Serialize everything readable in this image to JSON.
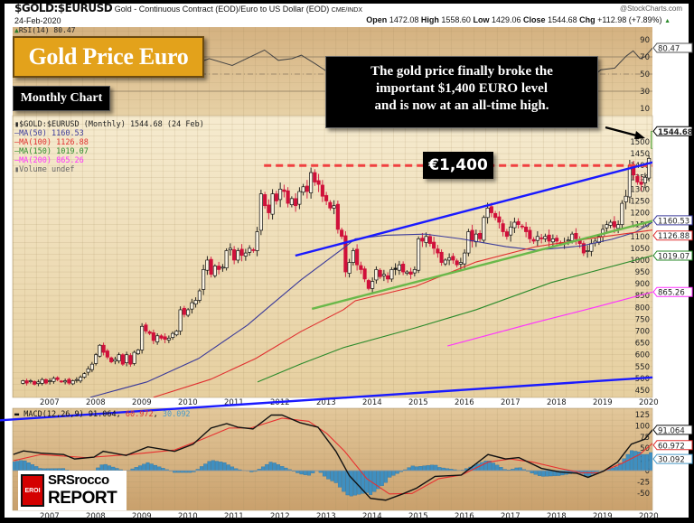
{
  "header": {
    "symbol": "$GOLD:$EURUSD",
    "description": "Gold - Continuous Contract (EOD)/Euro to US Dollar (EOD)",
    "exchange": "CME/INDX",
    "watermark": "@StockCharts.com",
    "date": "24-Feb-2020",
    "open_label": "Open",
    "open": "1472.08",
    "high_label": "High",
    "high": "1558.60",
    "low_label": "Low",
    "low": "1429.06",
    "close_label": "Close",
    "close": "1544.68",
    "chg_label": "Chg",
    "chg": "+112.98 (+7.89%)",
    "chg_arrow": "▲"
  },
  "annotations": {
    "title": "Gold Price Euro",
    "subtitle": "Monthly Chart",
    "callout": [
      "The gold price finally broke the",
      "important $1,400 EURO level",
      "and is now at an all-time high."
    ],
    "level_label": "€1,400"
  },
  "logo": {
    "badge": "EROI",
    "name": "SRSrocco",
    "report": "REPORT"
  },
  "chart_data": {
    "type": "candlestick",
    "title": "$GOLD:$EURUSD (Monthly) 1544.68 (24 Feb)",
    "start_month": "2006-06",
    "closes": [
      490,
      480,
      490,
      475,
      485,
      495,
      480,
      490,
      500,
      495,
      485,
      490,
      480,
      490,
      495,
      505,
      520,
      540,
      560,
      600,
      640,
      610,
      590,
      570,
      580,
      600,
      560,
      600,
      560,
      610,
      620,
      720,
      700,
      690,
      660,
      680,
      670,
      665,
      670,
      690,
      700,
      790,
      770,
      790,
      820,
      830,
      870,
      960,
      1000,
      940,
      975,
      960,
      970,
      1040,
      1050,
      1000,
      1040,
      1020,
      1030,
      1050,
      1040,
      1120,
      1280,
      1230,
      1200,
      1280,
      1250,
      1300,
      1290,
      1240,
      1260,
      1230,
      1290,
      1310,
      1290,
      1370,
      1330,
      1320,
      1270,
      1250,
      1220,
      1230,
      1130,
      1100,
      950,
      990,
      1040,
      980,
      960,
      920,
      880,
      910,
      960,
      930,
      940,
      920,
      960,
      960,
      980,
      950,
      950,
      940,
      960,
      1090,
      1080,
      1100,
      1070,
      1050,
      1030,
      990,
      1000,
      1010,
      1000,
      980,
      990,
      1030,
      1120,
      1080,
      1110,
      1090,
      1180,
      1220,
      1200,
      1180,
      1160,
      1120,
      1100,
      1140,
      1160,
      1150,
      1140,
      1120,
      1090,
      1080,
      1100,
      1090,
      1100,
      1080,
      1090,
      1080,
      1070,
      1075,
      1085,
      1110,
      1090,
      1070,
      1030,
      1040,
      1070,
      1080,
      1100,
      1130,
      1150,
      1160,
      1140,
      1150,
      1240,
      1270,
      1400,
      1360,
      1330,
      1320,
      1350,
      1430
    ],
    "last_candle": {
      "open": 1472.08,
      "high": 1558.6,
      "low": 1429.06,
      "close": 1544.68
    },
    "years": [
      "2007",
      "2008",
      "2009",
      "2010",
      "2011",
      "2012",
      "2013",
      "2014",
      "2015",
      "2016",
      "2017",
      "2018",
      "2019",
      "2020"
    ],
    "price_axis": {
      "range": [
        430,
        1600
      ],
      "ticks": [
        "1500",
        "1450",
        "1400",
        "1350",
        "1300",
        "1250",
        "1200",
        "1150",
        "1100",
        "1050",
        "1000",
        "950",
        "900",
        "850",
        "800",
        "750",
        "700",
        "650",
        "600",
        "550",
        "500",
        "450"
      ],
      "scale": "linear"
    },
    "last_price_label": "1544.68",
    "moving_averages": [
      {
        "label": "MA(50)",
        "value": "1160.53",
        "color": "#3a3a9a",
        "points": [
          [
            2007.92,
            420
          ],
          [
            2009.15,
            485
          ],
          [
            2010.27,
            584
          ],
          [
            2011.33,
            725
          ],
          [
            2011.86,
            813
          ],
          [
            2012.49,
            916
          ],
          [
            2013.41,
            1050
          ],
          [
            2013.67,
            1090
          ],
          [
            2014.33,
            1105
          ],
          [
            2015.18,
            1110
          ],
          [
            2015.96,
            1090
          ],
          [
            2016.94,
            1057
          ],
          [
            2017.59,
            1042
          ],
          [
            2018.57,
            1060
          ],
          [
            2019.24,
            1088
          ],
          [
            2019.75,
            1118
          ],
          [
            2020.12,
            1160.53
          ]
        ]
      },
      {
        "label": "MA(100)",
        "value": "1126.88",
        "color": "#e03030",
        "points": [
          [
            2009.29,
            420
          ],
          [
            2010.53,
            496
          ],
          [
            2011.51,
            584
          ],
          [
            2012.49,
            698
          ],
          [
            2013.41,
            790
          ],
          [
            2013.67,
            828
          ],
          [
            2014.98,
            889
          ],
          [
            2016.29,
            992
          ],
          [
            2017.59,
            1057
          ],
          [
            2018.9,
            1095
          ],
          [
            2020.12,
            1126.88
          ]
        ]
      },
      {
        "label": "MA(150)",
        "value": "1019.07",
        "color": "#2a8a2a",
        "points": [
          [
            2011.55,
            485
          ],
          [
            2012.49,
            561
          ],
          [
            2013.41,
            630
          ],
          [
            2014.98,
            714
          ],
          [
            2016.29,
            790
          ],
          [
            2017.92,
            905
          ],
          [
            2020.12,
            1019.07
          ]
        ]
      },
      {
        "label": "MA(200)",
        "value": "865.26",
        "color": "#ff30ff",
        "points": [
          [
            2015.67,
            637
          ],
          [
            2017.59,
            737
          ],
          [
            2018.9,
            802
          ],
          [
            2020.12,
            865.26
          ]
        ]
      }
    ],
    "volume_label": "Volume undef",
    "trendlines": [
      {
        "name": "resistance-1400-line",
        "color": "#f04040",
        "dashed": true,
        "points": [
          [
            2011.69,
            1400
          ],
          [
            2020.45,
            1400
          ]
        ]
      },
      {
        "name": "upper-channel-line",
        "color": "#1a1aff",
        "dashed": false,
        "points": [
          [
            2012.37,
            1019
          ],
          [
            2020.47,
            1431
          ]
        ]
      },
      {
        "name": "lower-channel-line",
        "color": "#6ab84a",
        "dashed": false,
        "points": [
          [
            2012.73,
            794
          ],
          [
            2020.47,
            1183
          ]
        ]
      },
      {
        "name": "long-term-support-line",
        "color": "#1a1aff",
        "dashed": false,
        "points": [
          [
            2005.9,
            322
          ],
          [
            2020.12,
            504
          ]
        ]
      }
    ],
    "rsi": {
      "label": "RSI(14)",
      "value": "80.47",
      "ticks": [
        "90",
        "70",
        "50",
        "30",
        "10"
      ],
      "points": [
        [
          2006.3,
          55
        ],
        [
          2007,
          52
        ],
        [
          2008,
          62
        ],
        [
          2008.8,
          50
        ],
        [
          2009.2,
          65
        ],
        [
          2010,
          58
        ],
        [
          2010.5,
          68
        ],
        [
          2011,
          60
        ],
        [
          2011.7,
          78
        ],
        [
          2012,
          66
        ],
        [
          2012.3,
          68
        ],
        [
          2012.5,
          72
        ],
        [
          2012.8,
          62
        ],
        [
          2013.0,
          55
        ],
        [
          2013.5,
          35
        ],
        [
          2014,
          40
        ],
        [
          2015,
          50
        ],
        [
          2016,
          60
        ],
        [
          2017,
          48
        ],
        [
          2018,
          50
        ],
        [
          2018.7,
          42
        ],
        [
          2019.0,
          55
        ],
        [
          2019.3,
          57
        ],
        [
          2019.55,
          71
        ],
        [
          2019.7,
          77
        ],
        [
          2019.85,
          68
        ],
        [
          2019.95,
          70
        ],
        [
          2020.12,
          80.47
        ]
      ]
    },
    "macd": {
      "label": "MACD(12,26,9)",
      "macd_value": "91.064",
      "signal_value": "60.972",
      "hist_value": "30.092",
      "ticks": [
        "125",
        "100",
        "75",
        "50",
        "25",
        "0",
        "-25",
        "-50"
      ],
      "macd_points": [
        [
          2006.25,
          36
        ],
        [
          2006.47,
          44
        ],
        [
          2006.85,
          39
        ],
        [
          2007.34,
          36
        ],
        [
          2007.58,
          26
        ],
        [
          2008.0,
          30
        ],
        [
          2008.2,
          43
        ],
        [
          2008.7,
          34
        ],
        [
          2009.17,
          53
        ],
        [
          2009.75,
          43
        ],
        [
          2010.15,
          59
        ],
        [
          2010.54,
          95
        ],
        [
          2010.88,
          105
        ],
        [
          2011.12,
          97
        ],
        [
          2011.45,
          93
        ],
        [
          2011.85,
          124
        ],
        [
          2012.08,
          124
        ],
        [
          2012.47,
          107
        ],
        [
          2012.86,
          97
        ],
        [
          2013.25,
          43
        ],
        [
          2013.54,
          -11
        ],
        [
          2014.0,
          -62
        ],
        [
          2014.33,
          -66
        ],
        [
          2014.7,
          -52
        ],
        [
          2015.0,
          -39
        ],
        [
          2015.4,
          -13
        ],
        [
          2015.97,
          -10
        ],
        [
          2016.55,
          36
        ],
        [
          2016.93,
          26
        ],
        [
          2017.22,
          29
        ],
        [
          2017.71,
          5
        ],
        [
          2018.1,
          -3
        ],
        [
          2018.48,
          -6
        ],
        [
          2018.72,
          -15
        ],
        [
          2019.06,
          -1
        ],
        [
          2019.36,
          19
        ],
        [
          2019.66,
          59
        ],
        [
          2019.95,
          70
        ],
        [
          2020.12,
          91.064
        ]
      ],
      "signal_points": [
        [
          2006.25,
          22
        ],
        [
          2006.85,
          36
        ],
        [
          2007.82,
          29
        ],
        [
          2008.78,
          36
        ],
        [
          2009.75,
          46
        ],
        [
          2010.35,
          70
        ],
        [
          2010.93,
          95
        ],
        [
          2011.4,
          95
        ],
        [
          2012.08,
          117
        ],
        [
          2012.66,
          110
        ],
        [
          2013.05,
          83
        ],
        [
          2013.44,
          43
        ],
        [
          2013.92,
          -18
        ],
        [
          2014.41,
          -52
        ],
        [
          2014.9,
          -51
        ],
        [
          2015.48,
          -18
        ],
        [
          2015.97,
          -10
        ],
        [
          2016.55,
          19
        ],
        [
          2017.03,
          26
        ],
        [
          2017.52,
          19
        ],
        [
          2018.1,
          5
        ],
        [
          2018.58,
          -5
        ],
        [
          2018.96,
          -5
        ],
        [
          2019.45,
          16
        ],
        [
          2019.84,
          36
        ],
        [
          2020.12,
          60.972
        ]
      ]
    }
  }
}
